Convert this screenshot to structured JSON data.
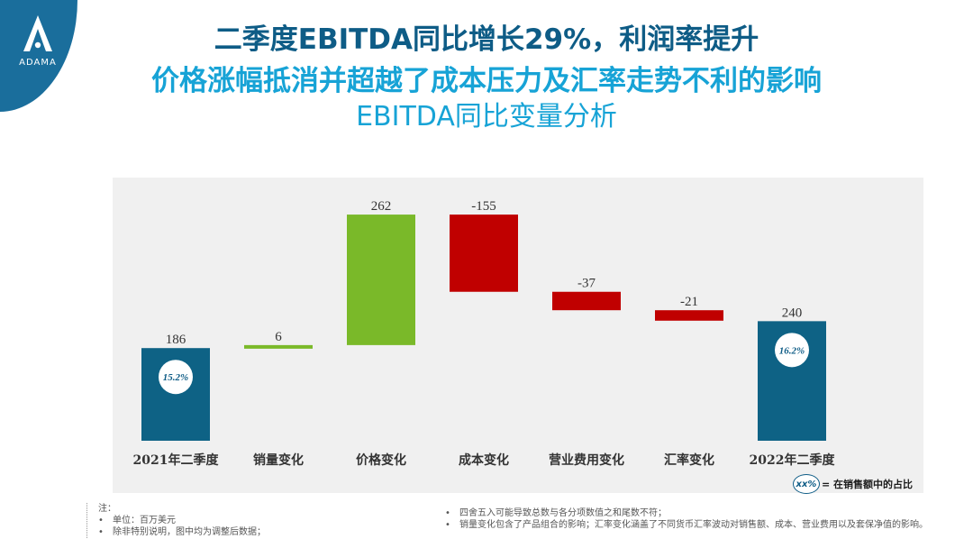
{
  "brand": {
    "logo_text": "ADAMA",
    "color_primary": "#1a6e9c",
    "color_accent": "#17a3d6"
  },
  "header": {
    "line1": "二季度EBITDA同比增长29%，利润率提升",
    "line2": "价格涨幅抵消并超越了成本压力及汇率走势不利的影响",
    "line3": "EBITDA同比变量分析"
  },
  "chart_data": {
    "type": "waterfall",
    "title": "EBITDA同比变量分析",
    "categories": [
      "2021年二季度",
      "销量变化",
      "价格变化",
      "成本变化",
      "营业费用变化",
      "汇率变化",
      "2022年二季度"
    ],
    "values": [
      186,
      6,
      262,
      -155,
      -37,
      -21,
      240
    ],
    "kinds": [
      "total",
      "delta",
      "delta",
      "delta",
      "delta",
      "delta",
      "total"
    ],
    "value_labels": [
      "186",
      "6",
      "262",
      "-155",
      "-37",
      "-21",
      "240"
    ],
    "margin_badges": [
      {
        "category": "2021年二季度",
        "text": "15.2%"
      },
      {
        "category": "2022年二季度",
        "text": "16.2%"
      }
    ],
    "colors": {
      "total": "#0e6285",
      "increase": "#7ab929",
      "decrease": "#c00000"
    },
    "legend": {
      "badge": "xx%",
      "text": "= 在销售额中的占比",
      "position": "bottom-right"
    },
    "grid": false
  },
  "notes": {
    "heading": "注：",
    "left_items": [
      "单位：百万美元",
      "除非特别说明，图中均为调整后数据；"
    ],
    "right_items": [
      "四舍五入可能导致总数与各分项数值之和尾数不符；",
      "销量变化包含了产品组合的影响；汇率变化涵盖了不同货币汇率波动对销售额、成本、营业费用以及套保净值的影响。"
    ],
    "bullet": "•"
  }
}
